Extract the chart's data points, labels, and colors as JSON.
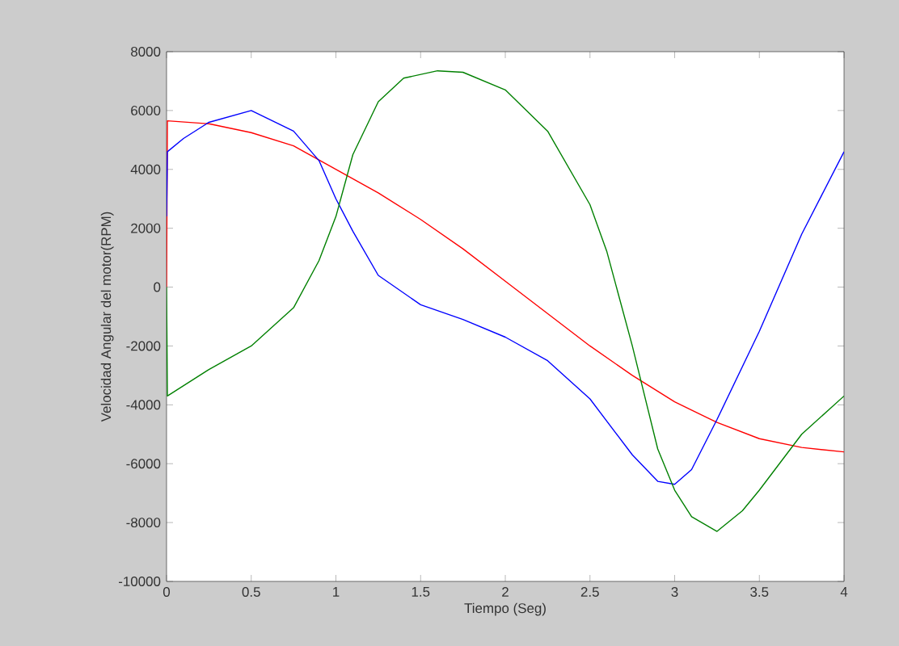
{
  "chart_data": {
    "type": "line",
    "xlabel": "Tiempo (Seg)",
    "ylabel": "Velocidad Angular del motor(RPM)",
    "xlim": [
      0,
      4
    ],
    "ylim": [
      -10000,
      8000
    ],
    "xticks": [
      0,
      0.5,
      1,
      1.5,
      2,
      2.5,
      3,
      3.5,
      4
    ],
    "yticks": [
      -10000,
      -8000,
      -6000,
      -4000,
      -2000,
      0,
      2000,
      4000,
      6000,
      8000
    ],
    "grid": false,
    "marker": "none",
    "line_style": "solid",
    "series": [
      {
        "color": "#ff0000",
        "x": [
          0,
          0.005,
          0.25,
          0.5,
          0.75,
          1.0,
          1.25,
          1.5,
          1.75,
          2.0,
          2.25,
          2.5,
          2.75,
          3.0,
          3.25,
          3.5,
          3.75,
          4.0
        ],
        "values": [
          0,
          5650,
          5550,
          5250,
          4800,
          4000,
          3200,
          2300,
          1300,
          200,
          -900,
          -2000,
          -3000,
          -3900,
          -4600,
          -5150,
          -5450,
          -5600
        ]
      },
      {
        "color": "#0000ff",
        "x": [
          0,
          0.005,
          0.1,
          0.25,
          0.5,
          0.75,
          0.9,
          1.0,
          1.1,
          1.25,
          1.5,
          1.75,
          2.0,
          2.25,
          2.5,
          2.75,
          2.9,
          3.0,
          3.1,
          3.25,
          3.5,
          3.75,
          4.0
        ],
        "values": [
          2400,
          4600,
          5050,
          5600,
          6000,
          5300,
          4300,
          3000,
          1900,
          400,
          -600,
          -1100,
          -1700,
          -2500,
          -3800,
          -5700,
          -6600,
          -6700,
          -6200,
          -4500,
          -1500,
          1800,
          4600
        ]
      },
      {
        "color": "#008000",
        "x": [
          0,
          0.005,
          0.25,
          0.5,
          0.75,
          0.9,
          1.0,
          1.1,
          1.25,
          1.4,
          1.6,
          1.75,
          2.0,
          2.25,
          2.5,
          2.6,
          2.75,
          2.9,
          3.0,
          3.1,
          3.25,
          3.4,
          3.5,
          3.75,
          4.0
        ],
        "values": [
          0,
          -3700,
          -2800,
          -2000,
          -700,
          900,
          2400,
          4500,
          6300,
          7100,
          7350,
          7300,
          6700,
          5300,
          2800,
          1200,
          -2000,
          -5500,
          -6900,
          -7800,
          -8300,
          -7600,
          -6900,
          -5000,
          -3700
        ]
      }
    ]
  }
}
